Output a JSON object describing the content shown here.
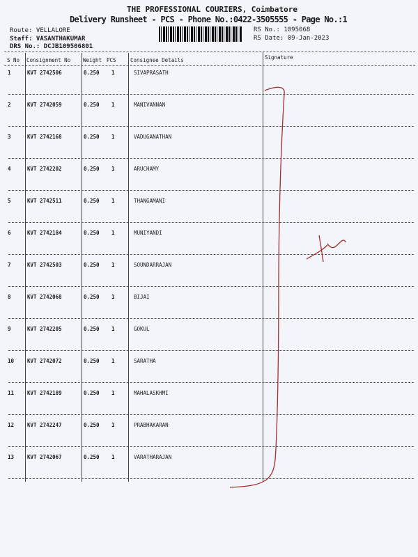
{
  "header": {
    "company": "THE PROFESSIONAL COURIERS, Coimbatore",
    "subtitle": "Delivery Runsheet - PCS - Phone No.:0422-3505555 - Page No.:1",
    "route": "Route: VELLALORE",
    "staff": "Staff: VASANTHAKUMAR",
    "drs": "DRS No.: DCJB109506801",
    "rs_no": "RS No.: 1095068",
    "rs_date": "RS Date: 09-Jan-2023"
  },
  "table": {
    "columns": [
      "S No",
      "Consignment No",
      "Weight",
      "PCS",
      "Consignee Details",
      "Signature"
    ],
    "rows": [
      {
        "sno": "1",
        "consignment": "KVT 2742506",
        "weight": "0.250",
        "pcs": "1",
        "consignee": "SIVAPRASATH"
      },
      {
        "sno": "2",
        "consignment": "KVT 2742059",
        "weight": "0.250",
        "pcs": "1",
        "consignee": "MANIVANNAN"
      },
      {
        "sno": "3",
        "consignment": "KVT 2742168",
        "weight": "0.250",
        "pcs": "1",
        "consignee": "VADUGANATHAN"
      },
      {
        "sno": "4",
        "consignment": "KVT 2742202",
        "weight": "0.250",
        "pcs": "1",
        "consignee": "ARUCHAMY"
      },
      {
        "sno": "5",
        "consignment": "KVT 2742511",
        "weight": "0.250",
        "pcs": "1",
        "consignee": "THANGAMANI"
      },
      {
        "sno": "6",
        "consignment": "KVT 2742184",
        "weight": "0.250",
        "pcs": "1",
        "consignee": "MUNIYANDI"
      },
      {
        "sno": "7",
        "consignment": "KVT 2742503",
        "weight": "0.250",
        "pcs": "1",
        "consignee": "SOUNDARRAJAN"
      },
      {
        "sno": "8",
        "consignment": "KVT 2742068",
        "weight": "0.250",
        "pcs": "1",
        "consignee": "BIJAI"
      },
      {
        "sno": "9",
        "consignment": "KVT 2742205",
        "weight": "0.250",
        "pcs": "1",
        "consignee": "GOKUL"
      },
      {
        "sno": "10",
        "consignment": "KVT 2742072",
        "weight": "0.250",
        "pcs": "1",
        "consignee": "SARATHA"
      },
      {
        "sno": "11",
        "consignment": "KVT 2742189",
        "weight": "0.250",
        "pcs": "1",
        "consignee": "MAHALASKHMI"
      },
      {
        "sno": "12",
        "consignment": "KVT 2742247",
        "weight": "0.250",
        "pcs": "1",
        "consignee": "PRABHAKARAN"
      },
      {
        "sno": "13",
        "consignment": "KVT 2742067",
        "weight": "0.250",
        "pcs": "1",
        "consignee": "VARATHARAJAN"
      }
    ]
  },
  "signature_ink_color": "#a0302a"
}
